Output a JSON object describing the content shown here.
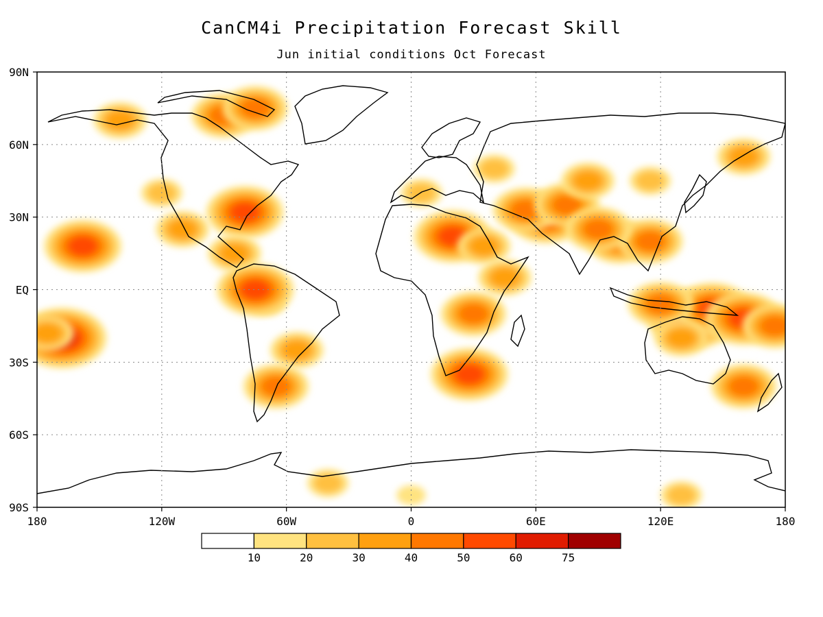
{
  "title": "CanCM4i Precipitation Forecast Skill",
  "subtitle": "Jun initial conditions  Oct Forecast",
  "map": {
    "projection": "equirectangular",
    "lon_range": [
      -180,
      180
    ],
    "lat_range": [
      -90,
      90
    ],
    "grid": "dotted",
    "x_ticks": [
      {
        "lon": -180,
        "label": "180"
      },
      {
        "lon": -120,
        "label": "120W"
      },
      {
        "lon": -60,
        "label": "60W"
      },
      {
        "lon": 0,
        "label": "0"
      },
      {
        "lon": 60,
        "label": "60E"
      },
      {
        "lon": 120,
        "label": "120E"
      },
      {
        "lon": 180,
        "label": "180"
      }
    ],
    "y_ticks": [
      {
        "lat": 90,
        "label": "90N"
      },
      {
        "lat": 60,
        "label": "60N"
      },
      {
        "lat": 30,
        "label": "30N"
      },
      {
        "lat": 0,
        "label": "EQ"
      },
      {
        "lat": -30,
        "label": "30S"
      },
      {
        "lat": -60,
        "label": "60S"
      },
      {
        "lat": -90,
        "label": "90S"
      }
    ]
  },
  "colorbar": {
    "boundaries": [
      "10",
      "20",
      "30",
      "40",
      "50",
      "60",
      "75"
    ],
    "colors": [
      "#ffffff",
      "#ffe380",
      "#ffc040",
      "#ffa010",
      "#ff7800",
      "#ff4a00",
      "#e01c00",
      "#a00000"
    ]
  },
  "chart_data": {
    "type": "heatmap",
    "title": "CanCM4i Precipitation Forecast Skill",
    "subtitle": "Jun initial conditions  Oct Forecast",
    "xlim": [
      -180,
      180
    ],
    "ylim": [
      -90,
      90
    ],
    "levels": [
      10,
      20,
      30,
      40,
      50,
      60,
      75
    ],
    "regions": [
      {
        "lon": 135,
        "lat": -12,
        "value": 62
      },
      {
        "lon": 145,
        "lat": -8,
        "value": 55
      },
      {
        "lon": 160,
        "lat": -12,
        "value": 52
      },
      {
        "lon": 120,
        "lat": -6,
        "value": 45
      },
      {
        "lon": 130,
        "lat": -20,
        "value": 35
      },
      {
        "lon": 175,
        "lat": -15,
        "value": 40
      },
      {
        "lon": 65,
        "lat": 30,
        "value": 55
      },
      {
        "lon": 55,
        "lat": 33,
        "value": 45
      },
      {
        "lon": 75,
        "lat": 35,
        "value": 40
      },
      {
        "lon": 20,
        "lat": 22,
        "value": 55
      },
      {
        "lon": 35,
        "lat": 18,
        "value": 30
      },
      {
        "lon": 30,
        "lat": -10,
        "value": 42
      },
      {
        "lon": 28,
        "lat": -35,
        "value": 50
      },
      {
        "lon": 45,
        "lat": 5,
        "value": 35
      },
      {
        "lon": 100,
        "lat": 20,
        "value": 48
      },
      {
        "lon": 115,
        "lat": 20,
        "value": 42
      },
      {
        "lon": 90,
        "lat": 25,
        "value": 40
      },
      {
        "lon": 85,
        "lat": 45,
        "value": 30
      },
      {
        "lon": 115,
        "lat": 45,
        "value": 28
      },
      {
        "lon": 160,
        "lat": 55,
        "value": 32
      },
      {
        "lon": 40,
        "lat": 50,
        "value": 28
      },
      {
        "lon": 5,
        "lat": 40,
        "value": 25
      },
      {
        "lon": -90,
        "lat": 72,
        "value": 48
      },
      {
        "lon": -75,
        "lat": 75,
        "value": 40
      },
      {
        "lon": -140,
        "lat": 70,
        "value": 35
      },
      {
        "lon": -80,
        "lat": 32,
        "value": 50
      },
      {
        "lon": -120,
        "lat": 40,
        "value": 25
      },
      {
        "lon": -110,
        "lat": 25,
        "value": 30
      },
      {
        "lon": -85,
        "lat": 15,
        "value": 35
      },
      {
        "lon": -70,
        "lat": -5,
        "value": 28
      },
      {
        "lon": -55,
        "lat": -25,
        "value": 30
      },
      {
        "lon": -65,
        "lat": -40,
        "value": 45
      },
      {
        "lon": -158,
        "lat": 18,
        "value": 55
      },
      {
        "lon": -168,
        "lat": -20,
        "value": 60
      },
      {
        "lon": -175,
        "lat": -18,
        "value": 35
      },
      {
        "lon": -75,
        "lat": 0,
        "value": 50
      },
      {
        "lon": 160,
        "lat": -40,
        "value": 40
      },
      {
        "lon": -40,
        "lat": -80,
        "value": 28
      },
      {
        "lon": 130,
        "lat": -85,
        "value": 25
      },
      {
        "lon": 0,
        "lat": -85,
        "value": 18
      }
    ]
  }
}
